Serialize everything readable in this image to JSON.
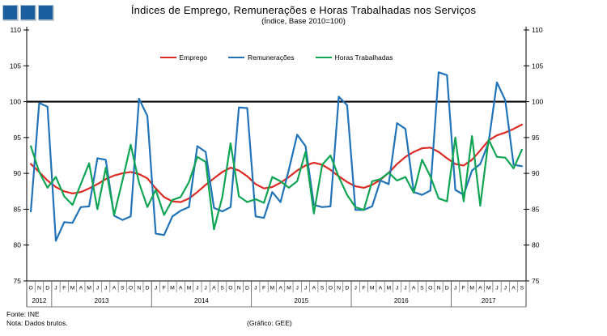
{
  "footer": {
    "source": "Fonte: INE",
    "note": "Nota: Dados brutos.",
    "credit": "(Gráfico: GEE)"
  },
  "logo": {
    "name": "three-squares-logo",
    "color": "#1A5E9E",
    "square_count": 3
  },
  "chart_data": {
    "type": "line",
    "title": "Índices de Emprego, Remunerações e Horas Trabalhadas nos Serviços",
    "subtitle": "(Índice, Base 2010=100)",
    "ylim": [
      75,
      110
    ],
    "yticks": [
      75,
      80,
      85,
      90,
      95,
      100,
      105,
      110
    ],
    "refline": 100,
    "grid": "off",
    "legend_position": "top-center",
    "y_axis_sides": "both",
    "x_months": [
      "O",
      "N",
      "D",
      "J",
      "F",
      "M",
      "A",
      "M",
      "J",
      "J",
      "A",
      "S",
      "O",
      "N",
      "D",
      "J",
      "F",
      "M",
      "A",
      "M",
      "J",
      "J",
      "A",
      "S",
      "O",
      "N",
      "D",
      "J",
      "F",
      "M",
      "A",
      "M",
      "J",
      "J",
      "A",
      "S",
      "O",
      "N",
      "D",
      "J",
      "F",
      "M",
      "A",
      "M",
      "J",
      "J",
      "A",
      "S",
      "O",
      "N",
      "D",
      "J",
      "F",
      "M",
      "A",
      "M",
      "J",
      "J",
      "A",
      "S"
    ],
    "year_groups": [
      {
        "label": "2012",
        "months": 3
      },
      {
        "label": "2013",
        "months": 12
      },
      {
        "label": "2014",
        "months": 12
      },
      {
        "label": "2015",
        "months": 12
      },
      {
        "label": "2016",
        "months": 12
      },
      {
        "label": "2017",
        "months": 9
      }
    ],
    "series": [
      {
        "name": "Emprego",
        "color": "#DC2B24",
        "values": [
          91.3,
          90.2,
          89.0,
          88.1,
          87.5,
          87.2,
          87.4,
          87.9,
          88.5,
          89.2,
          89.7,
          90.0,
          90.2,
          89.9,
          89.3,
          87.9,
          86.7,
          86.1,
          86.0,
          86.5,
          87.4,
          88.4,
          89.3,
          90.2,
          90.8,
          90.4,
          89.6,
          88.5,
          87.9,
          88.1,
          88.7,
          89.5,
          90.4,
          91.1,
          91.5,
          91.2,
          90.5,
          89.6,
          88.8,
          88.2,
          88.0,
          88.4,
          89.1,
          90.1,
          91.3,
          92.3,
          93.0,
          93.5,
          93.6,
          93.0,
          92.1,
          91.3,
          91.1,
          91.9,
          93.2,
          94.6,
          95.3,
          95.7,
          96.2,
          96.8
        ]
      },
      {
        "name": "Remunerações",
        "color": "#2173B8",
        "values": [
          84.7,
          99.8,
          99.3,
          80.6,
          83.2,
          83.1,
          85.3,
          85.4,
          92.1,
          91.9,
          84.1,
          83.5,
          84.0,
          100.4,
          98.0,
          81.6,
          81.4,
          84.0,
          84.8,
          85.3,
          93.8,
          93.0,
          85.2,
          84.7,
          85.3,
          99.2,
          99.1,
          84.0,
          83.8,
          87.4,
          86.0,
          90.5,
          95.4,
          93.8,
          85.6,
          85.3,
          85.4,
          100.7,
          99.5,
          84.9,
          84.9,
          85.4,
          89.0,
          88.5,
          97.0,
          96.2,
          87.4,
          87.0,
          87.6,
          104.1,
          103.7,
          87.7,
          87.0,
          90.4,
          91.3,
          94.3,
          102.7,
          100.2,
          91.2,
          91.0
        ]
      },
      {
        "name": "Horas Trabalhadas",
        "color": "#10A553",
        "values": [
          93.8,
          90.2,
          88.0,
          89.5,
          86.8,
          85.6,
          88.5,
          91.4,
          85.0,
          90.8,
          84.2,
          89.0,
          94.0,
          88.7,
          85.3,
          87.7,
          84.2,
          86.3,
          86.7,
          88.8,
          92.3,
          91.6,
          82.2,
          86.7,
          94.2,
          86.8,
          86.0,
          86.4,
          85.9,
          89.5,
          88.9,
          88.0,
          88.9,
          93.0,
          84.4,
          91.2,
          92.5,
          89.5,
          87.0,
          85.3,
          84.9,
          88.9,
          89.2,
          90.1,
          89.0,
          89.5,
          87.3,
          91.9,
          89.6,
          86.5,
          86.1,
          95.0,
          86.1,
          95.2,
          85.5,
          94.7,
          92.3,
          92.2,
          90.7,
          93.3
        ]
      }
    ]
  }
}
